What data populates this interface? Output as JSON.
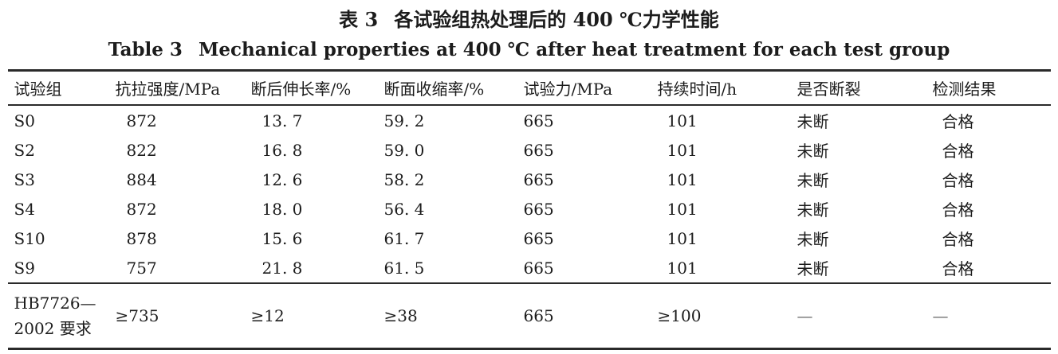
{
  "title_zh": {
    "label": "表 3",
    "text": "各试验组热处理后的 400 ℃力学性能"
  },
  "title_en": {
    "label": "Table 3",
    "text": "Mechanical properties at 400 ℃ after heat treatment for each test group"
  },
  "table": {
    "headers": [
      "试验组",
      "抗拉强度/MPa",
      "断后伸长率/%",
      "断面收缩率/%",
      "试验力/MPa",
      "持续时间/h",
      "是否断裂",
      "检测结果"
    ],
    "rows": [
      [
        "S0",
        "872",
        "13. 7",
        "59. 2",
        "665",
        "101",
        "未断",
        "合格"
      ],
      [
        "S2",
        "822",
        "16. 8",
        "59. 0",
        "665",
        "101",
        "未断",
        "合格"
      ],
      [
        "S3",
        "884",
        "12. 6",
        "58. 2",
        "665",
        "101",
        "未断",
        "合格"
      ],
      [
        "S4",
        "872",
        "18. 0",
        "56. 4",
        "665",
        "101",
        "未断",
        "合格"
      ],
      [
        "S10",
        "878",
        "15. 6",
        "61. 7",
        "665",
        "101",
        "未断",
        "合格"
      ],
      [
        "S9",
        "757",
        "21. 8",
        "61. 5",
        "665",
        "101",
        "未断",
        "合格"
      ]
    ],
    "requirement_row": {
      "label_line1": "HB7726—",
      "label_line2": "2002 要求",
      "values": [
        "≥735",
        "≥12",
        "≥38",
        "665",
        "≥100",
        "—",
        "—"
      ]
    }
  }
}
